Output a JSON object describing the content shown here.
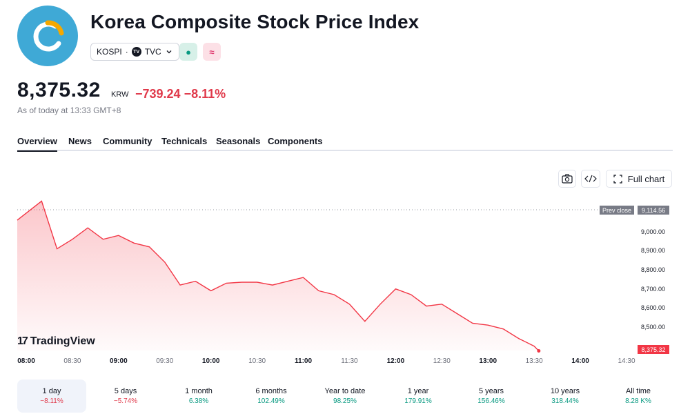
{
  "header": {
    "title": "Korea Composite Stock Price Index",
    "symbol": "KOSPI",
    "separator": "·",
    "exchange": "TVC",
    "market_status_symbol": "●",
    "data_status_symbol": "≈",
    "logo_color": "#3fa9d6",
    "logo_accent": "#f5a800"
  },
  "quote": {
    "price": "8,375.32",
    "currency": "KRW",
    "change": "−739.24",
    "change_percent": "−8.11%",
    "as_of": "As of today at 13:33 GMT+8",
    "down_color": "#e0394a",
    "up_color": "#089981"
  },
  "tabs": [
    {
      "label": "Overview",
      "active": true
    },
    {
      "label": "News"
    },
    {
      "label": "Community"
    },
    {
      "label": "Technicals"
    },
    {
      "label": "Seasonals"
    },
    {
      "label": "Components"
    }
  ],
  "toolbar": {
    "snapshot_icon": "camera-icon",
    "embed_icon": "code-icon",
    "full_chart_label": "Full chart",
    "full_chart_icon": "fullscreen-icon"
  },
  "chart_data": {
    "type": "area",
    "series": [
      {
        "x": [
          "08:00",
          "08:10",
          "08:20",
          "08:30",
          "08:40",
          "08:50",
          "09:00",
          "09:10",
          "09:20",
          "09:30",
          "09:40",
          "09:50",
          "10:00",
          "10:10",
          "10:20",
          "10:30",
          "10:40",
          "10:50",
          "11:00",
          "11:10",
          "11:20",
          "11:30",
          "11:40",
          "11:50",
          "12:00",
          "12:10",
          "12:20",
          "12:30",
          "12:40",
          "12:50",
          "13:00",
          "13:10",
          "13:20",
          "13:30",
          "13:33"
        ],
        "values": [
          9060,
          9160,
          8910,
          8960,
          9020,
          8960,
          8980,
          8940,
          8920,
          8840,
          8720,
          8740,
          8690,
          8730,
          8735,
          8735,
          8720,
          8740,
          8760,
          8690,
          8670,
          8620,
          8530,
          8620,
          8700,
          8670,
          8610,
          8620,
          8570,
          8520,
          8510,
          8490,
          8440,
          8400,
          8375.32
        ]
      }
    ],
    "prev_close_label": "Prev close",
    "prev_close": 9114.56,
    "prev_close_text": "9,114.56",
    "last_value_text": "8,375.32",
    "y_ticks": [
      {
        "value": 9000,
        "label": "9,000.00"
      },
      {
        "value": 8900,
        "label": "8,900.00"
      },
      {
        "value": 8800,
        "label": "8,800.00"
      },
      {
        "value": 8700,
        "label": "8,700.00"
      },
      {
        "value": 8600,
        "label": "8,600.00"
      },
      {
        "value": 8500,
        "label": "8,500.00"
      }
    ],
    "x_ticks": [
      {
        "t": "08:00",
        "label": "08:00",
        "major": true
      },
      {
        "t": "08:30",
        "label": "08:30",
        "major": false
      },
      {
        "t": "09:00",
        "label": "09:00",
        "major": true
      },
      {
        "t": "09:30",
        "label": "09:30",
        "major": false
      },
      {
        "t": "10:00",
        "label": "10:00",
        "major": true
      },
      {
        "t": "10:30",
        "label": "10:30",
        "major": false
      },
      {
        "t": "11:00",
        "label": "11:00",
        "major": true
      },
      {
        "t": "11:30",
        "label": "11:30",
        "major": false
      },
      {
        "t": "12:00",
        "label": "12:00",
        "major": true
      },
      {
        "t": "12:30",
        "label": "12:30",
        "major": false
      },
      {
        "t": "13:00",
        "label": "13:00",
        "major": true
      },
      {
        "t": "13:30",
        "label": "13:30",
        "major": false
      },
      {
        "t": "14:00",
        "label": "14:00",
        "major": true
      },
      {
        "t": "14:30",
        "label": "14:30",
        "major": false
      }
    ],
    "x_range": [
      "08:00",
      "14:45"
    ],
    "y_range": [
      8340,
      9160
    ],
    "line_color": "#f23645",
    "grid": false
  },
  "watermark": {
    "brand": "TradingView",
    "mark": "17"
  },
  "ranges": [
    {
      "label": "1 day",
      "value": "−8.11%",
      "dir": "neg",
      "active": true
    },
    {
      "label": "5 days",
      "value": "−5.74%",
      "dir": "neg"
    },
    {
      "label": "1 month",
      "value": "6.38%",
      "dir": "pos"
    },
    {
      "label": "6 months",
      "value": "102.49%",
      "dir": "pos"
    },
    {
      "label": "Year to date",
      "value": "98.25%",
      "dir": "pos"
    },
    {
      "label": "1 year",
      "value": "179.91%",
      "dir": "pos"
    },
    {
      "label": "5 years",
      "value": "156.46%",
      "dir": "pos"
    },
    {
      "label": "10 years",
      "value": "318.44%",
      "dir": "pos"
    },
    {
      "label": "All time",
      "value": "8.28 K%",
      "dir": "pos"
    }
  ]
}
